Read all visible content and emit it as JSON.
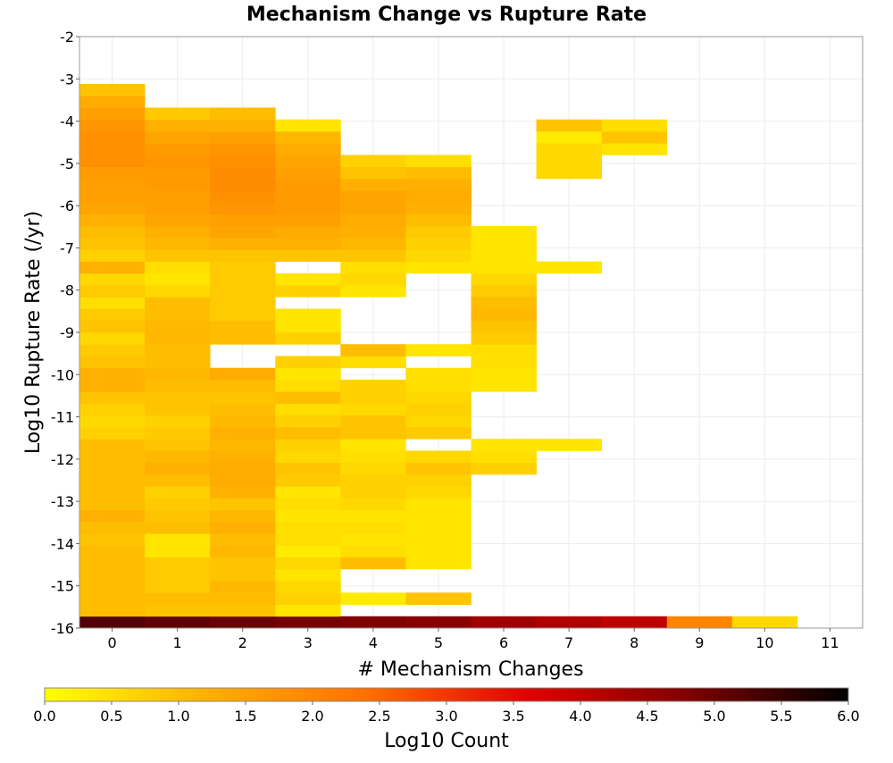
{
  "chart_data": {
    "type": "heatmap",
    "title": "Mechanism Change vs Rupture Rate",
    "xlabel": "# Mechanism Changes",
    "ylabel": "Log10 Rupture Rate (/yr)",
    "colorbar_label": "Log10 Count",
    "xlim": [
      -0.5,
      11.5
    ],
    "ylim": [
      -16,
      -2
    ],
    "x_ticks": [
      "0",
      "1",
      "2",
      "3",
      "4",
      "5",
      "6",
      "7",
      "8",
      "9",
      "10",
      "11"
    ],
    "y_ticks": [
      "-2",
      "-3",
      "-4",
      "-5",
      "-6",
      "-7",
      "-8",
      "-9",
      "-10",
      "-11",
      "-12",
      "-13",
      "-14",
      "-15",
      "-16"
    ],
    "color_range": [
      0,
      6
    ],
    "colorbar_ticks": [
      "0.0",
      "0.5",
      "1.0",
      "1.5",
      "2.0",
      "2.5",
      "3.0",
      "3.5",
      "4.0",
      "4.5",
      "5.0",
      "5.5",
      "6.0"
    ],
    "colormap": [
      "#ffff00",
      "#ffb000",
      "#ff7000",
      "#e00000",
      "#800000",
      "#000000"
    ],
    "grid": true,
    "bin_height": 0.28,
    "y_bin_start": -16,
    "columns": [
      {
        "x": 0,
        "values": [
          5.2,
          1.0,
          1.0,
          1.0,
          1.0,
          1.0,
          1.0,
          0.9,
          1.0,
          1.2,
          1.0,
          1.0,
          1.0,
          1.0,
          1.0,
          1.0,
          0.7,
          0.6,
          0.7,
          0.9,
          1.2,
          1.2,
          0.9,
          0.8,
          0.6,
          0.9,
          0.8,
          0.5,
          0.8,
          0.6,
          1.2,
          0.7,
          0.9,
          1.0,
          1.2,
          1.4,
          1.5,
          1.5,
          1.6,
          1.8,
          1.8,
          1.8,
          1.7,
          1.5,
          1.3,
          0.9
        ]
      },
      {
        "x": 1,
        "values": [
          5.1,
          0.9,
          1.0,
          0.8,
          0.8,
          0.8,
          0.4,
          0.4,
          1.0,
          0.9,
          0.8,
          0.7,
          1.0,
          1.2,
          1.1,
          0.9,
          0.8,
          0.7,
          0.9,
          0.9,
          1.0,
          1.1,
          1.0,
          1.0,
          1.1,
          1.1,
          1.0,
          1.0,
          0.6,
          0.4,
          0.5,
          0.9,
          1.1,
          1.2,
          1.4,
          1.5,
          1.5,
          1.6,
          1.6,
          1.7,
          1.6,
          1.4,
          1.2,
          0.8
        ]
      },
      {
        "x": 2,
        "values": [
          5.0,
          0.9,
          1.0,
          1.1,
          0.9,
          0.9,
          1.1,
          1.0,
          1.2,
          1.1,
          0.9,
          1.2,
          1.3,
          1.3,
          1.2,
          1.1,
          1.2,
          1.1,
          1.0,
          0.9,
          1.0,
          1.3,
          null,
          null,
          1.0,
          1.0,
          0.8,
          0.8,
          0.8,
          0.8,
          0.8,
          0.9,
          1.2,
          1.4,
          1.5,
          1.7,
          1.8,
          1.9,
          1.9,
          1.8,
          1.7,
          1.5,
          1.2,
          1.0
        ]
      },
      {
        "x": 3,
        "values": [
          4.9,
          0.4,
          0.7,
          0.6,
          0.4,
          0.6,
          0.3,
          0.5,
          0.5,
          0.4,
          0.5,
          0.4,
          0.8,
          0.9,
          0.6,
          0.7,
          1.0,
          0.7,
          0.5,
          1.0,
          0.5,
          0.4,
          0.7,
          null,
          0.7,
          0.4,
          0.4,
          null,
          0.7,
          0.4,
          null,
          0.9,
          1.2,
          1.3,
          1.5,
          1.6,
          1.6,
          1.6,
          1.5,
          1.4,
          1.3,
          1.1,
          0.4
        ]
      },
      {
        "x": 4,
        "values": [
          4.8,
          null,
          0.3,
          null,
          null,
          1.0,
          0.5,
          0.4,
          0.5,
          0.4,
          0.6,
          0.7,
          0.7,
          0.6,
          0.5,
          0.4,
          0.9,
          0.9,
          0.6,
          0.7,
          0.7,
          null,
          0.5,
          1.0,
          null,
          null,
          null,
          null,
          0.4,
          0.6,
          0.5,
          0.9,
          1.1,
          1.2,
          1.3,
          1.4,
          1.4,
          1.2,
          0.9,
          0.7
        ]
      },
      {
        "x": 5,
        "values": [
          4.7,
          null,
          0.9,
          null,
          null,
          0.4,
          0.4,
          0.4,
          0.4,
          0.4,
          0.4,
          0.6,
          0.7,
          0.9,
          0.6,
          null,
          0.8,
          0.6,
          0.7,
          0.6,
          0.5,
          0.5,
          null,
          0.4,
          null,
          null,
          null,
          null,
          null,
          null,
          0.4,
          0.6,
          0.7,
          0.8,
          1.0,
          1.2,
          1.3,
          1.2,
          1.0,
          0.5
        ]
      },
      {
        "x": 6,
        "values": [
          4.4,
          null,
          null,
          null,
          null,
          null,
          null,
          null,
          null,
          null,
          null,
          null,
          null,
          0.7,
          0.5,
          0.4,
          null,
          null,
          null,
          null,
          0.4,
          0.4,
          0.5,
          0.5,
          0.8,
          0.9,
          1.1,
          1.0,
          0.8,
          0.6,
          0.4,
          0.4,
          0.4,
          0.4
        ]
      },
      {
        "x": 7,
        "values": [
          4.2,
          null,
          null,
          null,
          null,
          null,
          null,
          null,
          null,
          null,
          null,
          null,
          null,
          null,
          null,
          0.4,
          null,
          null,
          null,
          null,
          null,
          null,
          null,
          null,
          null,
          null,
          null,
          null,
          null,
          null,
          0.4,
          null,
          null,
          null,
          null,
          null,
          null,
          null,
          0.6,
          0.6,
          0.6,
          0.3,
          0.9
        ]
      },
      {
        "x": 8,
        "values": [
          4.0,
          null,
          null,
          null,
          null,
          null,
          null,
          null,
          null,
          null,
          null,
          null,
          null,
          null,
          null,
          null,
          null,
          null,
          null,
          null,
          null,
          null,
          null,
          null,
          null,
          null,
          null,
          null,
          null,
          null,
          null,
          null,
          null,
          null,
          null,
          null,
          null,
          null,
          null,
          null,
          0.4,
          0.9,
          0.5
        ]
      },
      {
        "x": 9,
        "values": [
          2.0
        ]
      },
      {
        "x": 10,
        "values": [
          0.6
        ]
      }
    ]
  }
}
